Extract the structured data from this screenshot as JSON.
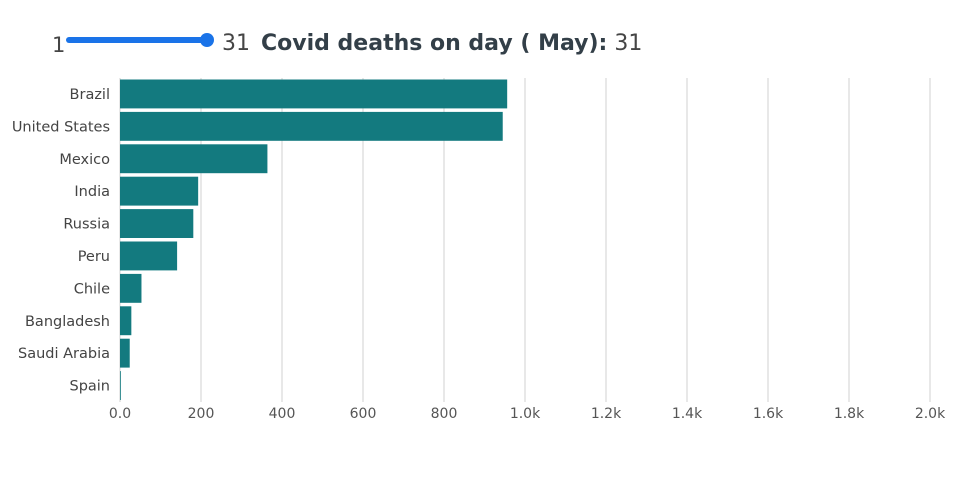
{
  "slider": {
    "min_label": "1",
    "max_label": "31",
    "value": 31
  },
  "title": {
    "text": "Covid deaths on day ( May):",
    "day": "31"
  },
  "colors": {
    "bar": "#137a7f",
    "slider": "#1a73e8",
    "grid": "#d9d9d9"
  },
  "chart_data": {
    "type": "bar",
    "orientation": "horizontal",
    "categories": [
      "Brazil",
      "United States",
      "Mexico",
      "India",
      "Russia",
      "Peru",
      "Chile",
      "Bangladesh",
      "Saudi Arabia",
      "Spain"
    ],
    "values": [
      956,
      945,
      364,
      193,
      181,
      141,
      53,
      28,
      24,
      2
    ],
    "xlim": [
      0,
      2000
    ],
    "xticks": [
      "0.0",
      "200",
      "400",
      "600",
      "800",
      "1.0k",
      "1.2k",
      "1.4k",
      "1.6k",
      "1.8k",
      "2.0k"
    ],
    "grid": true
  }
}
